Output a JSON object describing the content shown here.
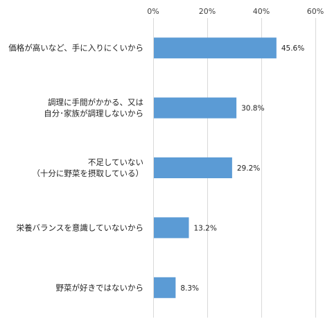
{
  "chart_data": {
    "type": "bar",
    "orientation": "horizontal",
    "categories": [
      [
        "価格が高いなど、手に入りにくいから"
      ],
      [
        "調理に手間がかかる、又は",
        "自分･家族が調理しないから"
      ],
      [
        "不足していない",
        "（十分に野菜を摂取している）"
      ],
      [
        "栄養バランスを意識していないから"
      ],
      [
        "野菜が好きではないから"
      ]
    ],
    "values": [
      45.6,
      30.8,
      29.2,
      13.2,
      8.3
    ],
    "value_labels": [
      "45.6%",
      "30.8%",
      "29.2%",
      "13.2%",
      "8.3%"
    ],
    "xlim": [
      0,
      60
    ],
    "xticks": [
      0,
      20,
      40,
      60
    ],
    "xtick_labels": [
      "0%",
      "20%",
      "40%",
      "60%"
    ],
    "axis_position": "top",
    "grid": true,
    "bar_color": "#5b9bd5",
    "grid_color": "#d9d9d9",
    "title": "",
    "xlabel": "",
    "ylabel": ""
  }
}
